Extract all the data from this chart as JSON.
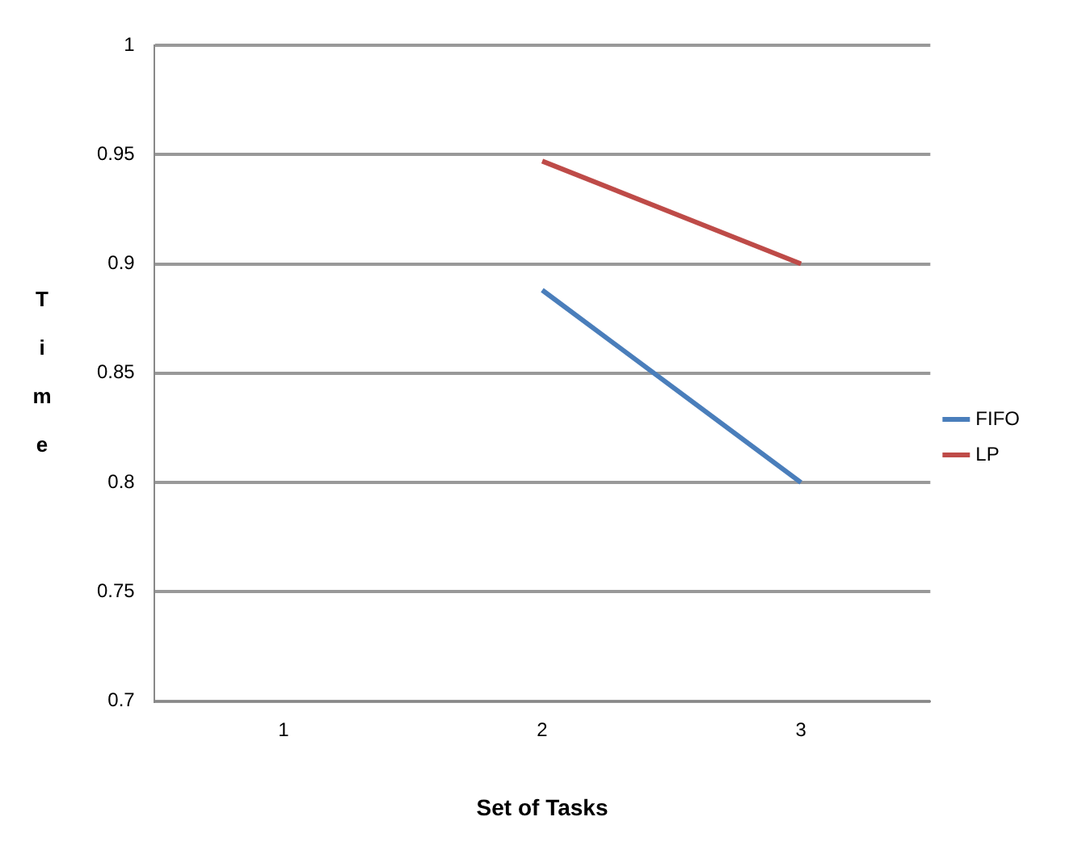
{
  "chart_data": {
    "type": "line",
    "xlabel": "Set of Tasks",
    "ylabel": "Time",
    "categories": [
      "1",
      "2",
      "3"
    ],
    "series": [
      {
        "name": "FIFO",
        "color": "#4a7ebb",
        "values": [
          null,
          0.888,
          0.8
        ]
      },
      {
        "name": "LP",
        "color": "#be4b48",
        "values": [
          null,
          0.947,
          0.9
        ]
      }
    ],
    "ylim": [
      0.7,
      1
    ],
    "yticks": [
      0.7,
      0.75,
      0.8,
      0.85,
      0.9,
      0.95,
      1
    ],
    "grid": "y",
    "legend": "right",
    "marker": "none",
    "line_style": "solid"
  }
}
